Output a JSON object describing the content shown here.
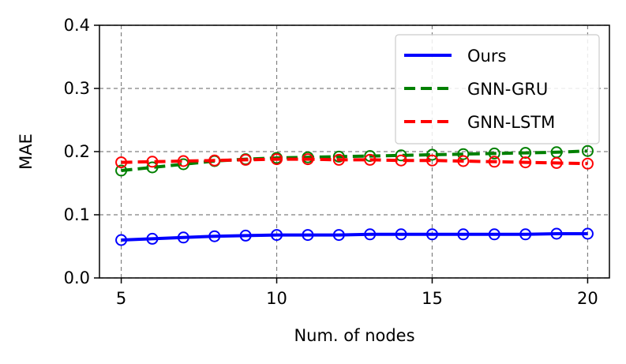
{
  "chart_data": {
    "type": "line",
    "xlabel": "Num. of nodes",
    "ylabel": "MAE",
    "xlim": [
      4.3,
      20.7
    ],
    "ylim": [
      0.0,
      0.4
    ],
    "xticks": [
      5,
      10,
      15,
      20
    ],
    "yticks": [
      0.0,
      0.1,
      0.2,
      0.3,
      0.4
    ],
    "xtick_labels": [
      "5",
      "10",
      "15",
      "20"
    ],
    "ytick_labels": [
      "0.0",
      "0.1",
      "0.2",
      "0.3",
      "0.4"
    ],
    "grid": true,
    "legend_position": "top-right",
    "x": [
      5,
      6,
      7,
      8,
      9,
      10,
      11,
      12,
      13,
      14,
      15,
      16,
      17,
      18,
      19,
      20
    ],
    "series": [
      {
        "name": "Ours",
        "color": "#0000ff",
        "line_style": "solid",
        "values": [
          0.06,
          0.062,
          0.064,
          0.066,
          0.067,
          0.068,
          0.068,
          0.068,
          0.069,
          0.069,
          0.069,
          0.069,
          0.069,
          0.069,
          0.07,
          0.07
        ]
      },
      {
        "name": "GNN-GRU",
        "color": "#008000",
        "line_style": "dashed",
        "values": [
          0.17,
          0.175,
          0.18,
          0.185,
          0.188,
          0.19,
          0.191,
          0.192,
          0.193,
          0.194,
          0.195,
          0.196,
          0.197,
          0.198,
          0.199,
          0.201
        ]
      },
      {
        "name": "GNN-LSTM",
        "color": "#ff0000",
        "line_style": "dashed",
        "values": [
          0.183,
          0.184,
          0.185,
          0.186,
          0.187,
          0.188,
          0.188,
          0.187,
          0.187,
          0.186,
          0.186,
          0.185,
          0.184,
          0.183,
          0.182,
          0.181
        ]
      }
    ]
  }
}
